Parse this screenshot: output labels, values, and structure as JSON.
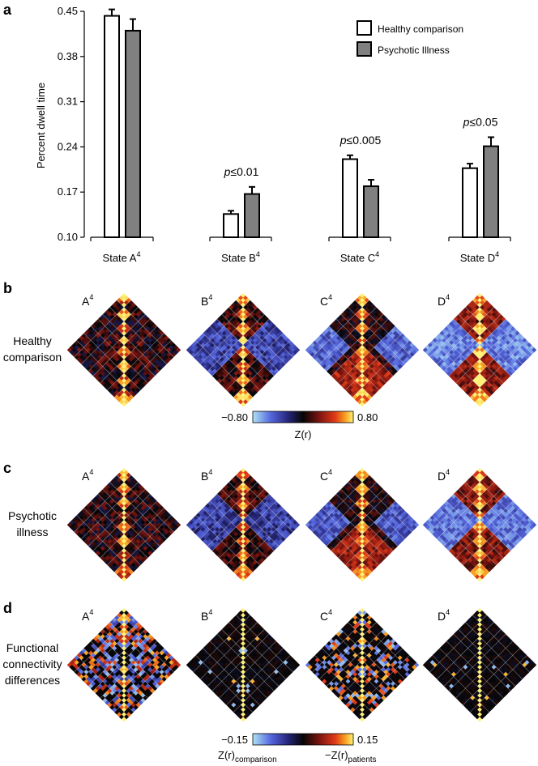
{
  "panels": {
    "a": "a",
    "b": "b",
    "c": "c",
    "d": "d"
  },
  "chart_data": {
    "type": "bar",
    "ylabel": "Percent dwell time",
    "ylim": [
      0.1,
      0.45
    ],
    "yticks": [
      "0.10",
      "0.17",
      "0.24",
      "0.31",
      "0.38",
      "0.45"
    ],
    "ytick_values": [
      0.1,
      0.17,
      0.24,
      0.31,
      0.38,
      0.45
    ],
    "categories": [
      {
        "name": "State A",
        "sup": "4"
      },
      {
        "name": "State B",
        "sup": "4"
      },
      {
        "name": "State C",
        "sup": "4"
      },
      {
        "name": "State D",
        "sup": "4"
      }
    ],
    "series": [
      {
        "name": "Healthy comparison",
        "color": "#ffffff",
        "values": [
          0.443,
          0.136,
          0.221,
          0.207
        ],
        "errors": [
          0.01,
          0.005,
          0.006,
          0.007
        ]
      },
      {
        "name": "Psychotic Illness",
        "color": "#808080",
        "values": [
          0.42,
          0.167,
          0.179,
          0.241
        ],
        "errors": [
          0.018,
          0.011,
          0.01,
          0.014
        ]
      }
    ],
    "annotations": [
      {
        "category": 1,
        "p": "p",
        "rest": "≤0.01"
      },
      {
        "category": 2,
        "p": "p",
        "rest": "≤0.005"
      },
      {
        "category": 3,
        "p": "p",
        "rest": "≤0.05"
      }
    ]
  },
  "matrix_rows": [
    {
      "label_lines": [
        "Healthy",
        "comparison"
      ],
      "kind": "group"
    },
    {
      "label_lines": [
        "Psychotic",
        "illness"
      ],
      "kind": "group"
    },
    {
      "label_lines": [
        "Functional",
        "connectivity",
        "differences"
      ],
      "kind": "diff"
    }
  ],
  "matrix_states": [
    {
      "letter": "A",
      "sup": "4"
    },
    {
      "letter": "B",
      "sup": "4"
    },
    {
      "letter": "C",
      "sup": "4"
    },
    {
      "letter": "D",
      "sup": "4"
    }
  ],
  "colorbar_group": {
    "min": "−0.80",
    "max": "0.80",
    "label": "Z(r)"
  },
  "colorbar_diff": {
    "min": "−0.15",
    "max": "0.15",
    "label_left": "Z(r)",
    "label_left_sub": "comparison",
    "label_right": "−Z(r)",
    "label_right_sub": "patients"
  }
}
